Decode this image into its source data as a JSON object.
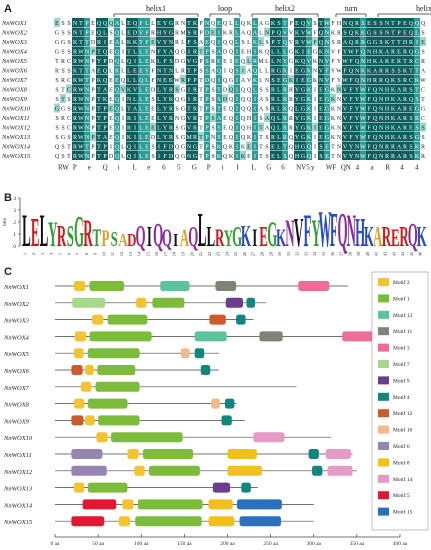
{
  "panels": {
    "a": "A",
    "b": "B",
    "c": "C"
  },
  "alignment": {
    "regions": [
      {
        "label": "helix1",
        "start": 10,
        "end": 24
      },
      {
        "label": "loop",
        "start": 26,
        "end": 31
      },
      {
        "label": "helix2",
        "start": 33,
        "end": 44
      },
      {
        "label": "turn",
        "start": 47,
        "end": 52
      },
      {
        "label": "helix3",
        "start": 54,
        "end": 70
      }
    ],
    "colors": {
      "dark": "#0f5e5e",
      "mid": "#2e9b95",
      "light": "#9fd6d0"
    },
    "sequences": [
      {
        "name": "NnWOX1",
        "seq": "ESSNTPEQQQALEQFLLEYGRNTKPNQEQLLQKLAGKSTPEQVSTWFHNQRS"
      },
      {
        "name": "NnWOX2",
        "seq": "GSSNTPEQLSQLEDVFRHYGRMSRPDEIKRLAQALNPQVVKVWFQNKRSQKK"
      },
      {
        "name": "NnWOX3",
        "seq": "GGSKTTDRIEALKKTFEVYNRLFSAEQIQQLSLKLSPTQVRVWFQNSRAQRR"
      },
      {
        "name": "NnWOX4",
        "seq": "GSSRWNPTQEQITLLENFYAQGIRTPSADQIEHIKQLLLGKIEGKNVFYWFQNHKARERQ"
      },
      {
        "name": "NnWOX5",
        "seq": "TRCRWNPTPDQLQILEKLFSDGVGPSREEIEQLRMLLNYGKQVKNVFYWFQNHKARER"
      },
      {
        "name": "NnWOX6",
        "seq": "RSSKTTAEQLRLLEEYFNTNLRTPSSAQIQSIAQLLRGKIEGKNVFYWFQNKKAR"
      },
      {
        "name": "NnWOX7",
        "seq": "SRCKWTPKQEEQLLQLFNEKWRPPTDQIQGIAVKLNSEGKIEGKNVFYWFQNHRRQK"
      },
      {
        "name": "NnWOX8",
        "seq": "STCRWNPTAEQVKVLEDLYRSGIRTPSTDQIQQLSSRLRRYGKIEGKNVFYWFQNHKAR"
      },
      {
        "name": "NnWOX9",
        "seq": "STSRWNPTKEQINLLESLYKQGIRTPSSDQIQQIASRLRRYGKIEGKNVFYWFQNHKARQ"
      },
      {
        "name": "NnWOX10",
        "seq": "GGSRWNPTPEQLTALEELYRSGTRTPSTEQIQQIASRLKQLGKIEGKNVFYWFQNHKARE"
      },
      {
        "name": "NnWOX11",
        "seq": "SRCRWNPTPEQIRILEELYRNGVRTPSAEQIQHISAQLRRYGKIEGKNVFYWFQNHKAR"
      },
      {
        "name": "NnWOX12",
        "seq": "SSCRWNPTPEQIRILEELYRSGVRTPSSEQIQHITAQLRRYGKIEGKNVFYWFQNHKARE"
      },
      {
        "name": "NnWOX13",
        "seq": "SGSRWNPTAEQIKILEDLYRSGMRTPNSEQIQKITSRLRQYGKIEGKNVFYWFQNHKAR"
      },
      {
        "name": "NnWOX14",
        "seq": "QSTRWTPTPIQLQILESIFDQGNGTPSKQKIKEITSELTQHGQISETNVYNWFQNRRARSKR"
      },
      {
        "name": "NnWOX15",
        "seq": "QSTRWNPTPDQLQILESIFDQGNGTPSKQKIKEITSELSQHGQISETNVYNWFQNRRARSKRQ"
      }
    ],
    "consensus": [
      "RW",
      "P",
      "e",
      "Q",
      "i",
      "L",
      "e",
      "6",
      "5",
      "G",
      "P",
      "i",
      "I",
      "L",
      "G",
      "6",
      "NV5",
      "y",
      "WF",
      "QN",
      "4",
      "a",
      "R",
      "4",
      "4"
    ]
  },
  "logo": {
    "ylabel": "bits",
    "yticks": [
      "4",
      "3",
      "2",
      "1",
      "0"
    ],
    "letters": [
      "L",
      "E",
      "L",
      "Y",
      "R",
      "S",
      "G",
      "R",
      "T",
      "P",
      "S",
      "A",
      "D",
      "Q",
      "I",
      "Q",
      "Q",
      "I",
      "A",
      "Q",
      "L",
      "L",
      "R",
      "Y",
      "G",
      "K",
      "I",
      "E",
      "G",
      "K",
      "N",
      "V",
      "F",
      "Y",
      "W",
      "F",
      "Q",
      "N",
      "H",
      "K",
      "A",
      "R",
      "E",
      "R",
      "Q",
      "K"
    ],
    "heights": [
      0.9,
      0.8,
      0.9,
      0.7,
      0.6,
      0.6,
      0.85,
      0.75,
      0.5,
      0.45,
      0.4,
      0.35,
      0.35,
      0.6,
      0.55,
      0.65,
      0.5,
      0.35,
      0.5,
      0.55,
      0.95,
      0.55,
      0.5,
      0.45,
      0.55,
      0.6,
      0.5,
      0.55,
      0.7,
      0.5,
      0.75,
      0.8,
      0.9,
      0.75,
      1.0,
      0.95,
      0.95,
      0.9,
      0.8,
      0.55,
      0.55,
      0.55,
      0.5,
      0.55,
      0.65,
      0.55
    ],
    "positions": [
      "1",
      "2",
      "3",
      "4",
      "5",
      "6",
      "7",
      "8",
      "9",
      "10",
      "11",
      "12",
      "13",
      "14",
      "15",
      "16",
      "17",
      "18",
      "19",
      "20",
      "21",
      "22",
      "23",
      "24",
      "25",
      "26",
      "27",
      "28",
      "29",
      "30",
      "31",
      "32",
      "33",
      "34",
      "35",
      "36",
      "37",
      "38",
      "39",
      "40",
      "41",
      "42",
      "43",
      "44",
      "45",
      "46"
    ]
  },
  "motifs": {
    "legend": [
      {
        "label": "Motif 2",
        "color": "#f4c430"
      },
      {
        "label": "Motif 1",
        "color": "#7dbb3b"
      },
      {
        "label": "Motif 13",
        "color": "#5cc49a"
      },
      {
        "label": "Motif 11",
        "color": "#7d8577"
      },
      {
        "label": "Motif 3",
        "color": "#ef6c9a"
      },
      {
        "label": "Motif 7",
        "color": "#a6d98b"
      },
      {
        "label": "Motif 9",
        "color": "#6a3d8f"
      },
      {
        "label": "Motif 4",
        "color": "#11867d"
      },
      {
        "label": "Motif 12",
        "color": "#cc5a2a"
      },
      {
        "label": "Motif 10",
        "color": "#f4b98a"
      },
      {
        "label": "Motif 6",
        "color": "#9486b0"
      },
      {
        "label": "Motif 8",
        "color": "#f2c01e"
      },
      {
        "label": "Motif 14",
        "color": "#e69ac6"
      },
      {
        "label": "Motif 5",
        "color": "#e21830"
      },
      {
        "label": "Motif 15",
        "color": "#2c6fbf"
      }
    ],
    "axis": {
      "max": 400,
      "ticks": [
        "0 aa",
        "50 aa",
        "100 aa",
        "150 aa",
        "200 aa",
        "250 aa",
        "300 aa",
        "350 aa",
        "400 aa"
      ]
    },
    "genes": [
      {
        "name": "NnWOX1",
        "length": 340,
        "motifs": [
          {
            "m": "Motif 2",
            "s": 22,
            "e": 35
          },
          {
            "m": "Motif 1",
            "s": 40,
            "e": 80
          },
          {
            "m": "Motif 13",
            "s": 122,
            "e": 156
          },
          {
            "m": "Motif 11",
            "s": 186,
            "e": 210
          },
          {
            "m": "Motif 3",
            "s": 282,
            "e": 318
          }
        ]
      },
      {
        "name": "NnWOX2",
        "length": 245,
        "motifs": [
          {
            "m": "Motif 7",
            "s": 20,
            "e": 58
          },
          {
            "m": "Motif 2",
            "s": 94,
            "e": 106
          },
          {
            "m": "Motif 1",
            "s": 113,
            "e": 150
          },
          {
            "m": "Motif 9",
            "s": 198,
            "e": 218
          },
          {
            "m": "Motif 4",
            "s": 222,
            "e": 232
          }
        ]
      },
      {
        "name": "NnWOX3",
        "length": 230,
        "motifs": [
          {
            "m": "Motif 2",
            "s": 43,
            "e": 56
          },
          {
            "m": "Motif 1",
            "s": 61,
            "e": 107
          },
          {
            "m": "Motif 12",
            "s": 179,
            "e": 198
          },
          {
            "m": "Motif 4",
            "s": 210,
            "e": 221
          }
        ]
      },
      {
        "name": "NnWOX4",
        "length": 385,
        "motifs": [
          {
            "m": "Motif 2",
            "s": 23,
            "e": 36
          },
          {
            "m": "Motif 1",
            "s": 40,
            "e": 112
          },
          {
            "m": "Motif 13",
            "s": 162,
            "e": 199
          },
          {
            "m": "Motif 11",
            "s": 237,
            "e": 264
          },
          {
            "m": "Motif 3",
            "s": 333,
            "e": 377
          }
        ]
      },
      {
        "name": "NnWOX5",
        "length": 190,
        "motifs": [
          {
            "m": "Motif 2",
            "s": 22,
            "e": 33
          },
          {
            "m": "Motif 1",
            "s": 38,
            "e": 98
          },
          {
            "m": "Motif 10",
            "s": 146,
            "e": 156
          },
          {
            "m": "Motif 4",
            "s": 162,
            "e": 173
          }
        ]
      },
      {
        "name": "NnWOX6",
        "length": 190,
        "motifs": [
          {
            "m": "Motif 12",
            "s": 19,
            "e": 32
          },
          {
            "m": "Motif 2",
            "s": 35,
            "e": 45
          },
          {
            "m": "Motif 1",
            "s": 49,
            "e": 93
          },
          {
            "m": "Motif 4",
            "s": 169,
            "e": 180
          }
        ]
      },
      {
        "name": "NnWOX7",
        "length": 280,
        "motifs": [
          {
            "m": "Motif 2",
            "s": 30,
            "e": 42
          },
          {
            "m": "Motif 1",
            "s": 47,
            "e": 98
          }
        ]
      },
      {
        "name": "NnWOX8",
        "length": 210,
        "motifs": [
          {
            "m": "Motif 2",
            "s": 22,
            "e": 34
          },
          {
            "m": "Motif 1",
            "s": 38,
            "e": 84
          },
          {
            "m": "Motif 10",
            "s": 181,
            "e": 191
          },
          {
            "m": "Motif 4",
            "s": 197,
            "e": 208
          }
        ]
      },
      {
        "name": "NnWOX9",
        "length": 220,
        "motifs": [
          {
            "m": "Motif 12",
            "s": 19,
            "e": 33
          },
          {
            "m": "Motif 2",
            "s": 35,
            "e": 46
          },
          {
            "m": "Motif 1",
            "s": 50,
            "e": 98
          },
          {
            "m": "Motif 4",
            "s": 193,
            "e": 205
          }
        ]
      },
      {
        "name": "NnWOX10",
        "length": 320,
        "motifs": [
          {
            "m": "Motif 2",
            "s": 48,
            "e": 61
          },
          {
            "m": "Motif 1",
            "s": 65,
            "e": 148
          },
          {
            "m": "Motif 14",
            "s": 230,
            "e": 266
          }
        ]
      },
      {
        "name": "NnWOX11",
        "length": 345,
        "motifs": [
          {
            "m": "Motif 6",
            "s": 19,
            "e": 55
          },
          {
            "m": "Motif 2",
            "s": 84,
            "e": 97
          },
          {
            "m": "Motif 1",
            "s": 102,
            "e": 160
          },
          {
            "m": "Motif 8",
            "s": 200,
            "e": 234
          },
          {
            "m": "Motif 4",
            "s": 294,
            "e": 306
          },
          {
            "m": "Motif 14",
            "s": 314,
            "e": 343
          }
        ]
      },
      {
        "name": "NnWOX12",
        "length": 350,
        "motifs": [
          {
            "m": "Motif 6",
            "s": 19,
            "e": 60
          },
          {
            "m": "Motif 2",
            "s": 92,
            "e": 104
          },
          {
            "m": "Motif 1",
            "s": 109,
            "e": 168
          },
          {
            "m": "Motif 8",
            "s": 200,
            "e": 240
          },
          {
            "m": "Motif 4",
            "s": 298,
            "e": 310
          },
          {
            "m": "Motif 14",
            "s": 316,
            "e": 345
          }
        ]
      },
      {
        "name": "NnWOX13",
        "length": 235,
        "motifs": [
          {
            "m": "Motif 2",
            "s": 22,
            "e": 34
          },
          {
            "m": "Motif 1",
            "s": 38,
            "e": 84
          },
          {
            "m": "Motif 9",
            "s": 183,
            "e": 203
          },
          {
            "m": "Motif 4",
            "s": 216,
            "e": 227
          }
        ]
      },
      {
        "name": "NnWOX14",
        "length": 300,
        "motifs": [
          {
            "m": "Motif 5",
            "s": 32,
            "e": 71
          },
          {
            "m": "Motif 2",
            "s": 78,
            "e": 91
          },
          {
            "m": "Motif 1",
            "s": 96,
            "e": 171
          },
          {
            "m": "Motif 8",
            "s": 178,
            "e": 206
          },
          {
            "m": "Motif 15",
            "s": 211,
            "e": 263
          }
        ]
      },
      {
        "name": "NnWOX15",
        "length": 300,
        "motifs": [
          {
            "m": "Motif 5",
            "s": 19,
            "e": 57
          },
          {
            "m": "Motif 2",
            "s": 74,
            "e": 87
          },
          {
            "m": "Motif 1",
            "s": 93,
            "e": 170
          },
          {
            "m": "Motif 8",
            "s": 178,
            "e": 208
          },
          {
            "m": "Motif 15",
            "s": 214,
            "e": 262
          }
        ]
      }
    ]
  }
}
